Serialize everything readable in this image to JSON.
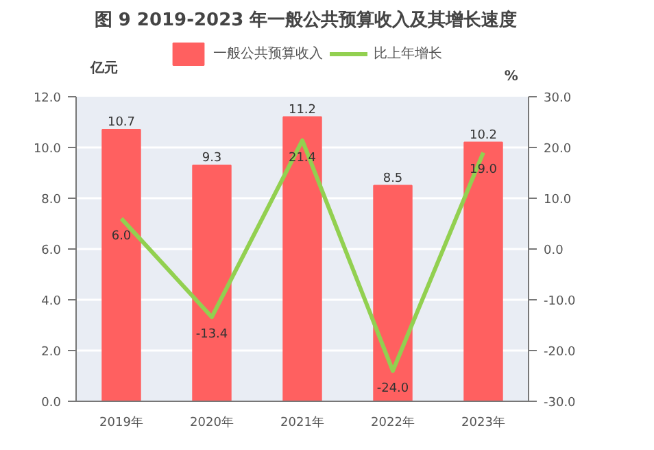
{
  "chart_data": {
    "type": "bar",
    "title": "图 9 2019-2023 年一般公共预算收入及其增长速度",
    "categories": [
      "2019年",
      "2020年",
      "2021年",
      "2022年",
      "2023年"
    ],
    "series": [
      {
        "name": "一般公共预算收入",
        "color": "#ff6060",
        "values": [
          10.7,
          9.3,
          11.2,
          8.5,
          10.2
        ],
        "value_labels": [
          "10.7",
          "9.3",
          "11.2",
          "8.5",
          "10.2"
        ]
      },
      {
        "name": "比上年增长",
        "type": "line",
        "axis": "y2",
        "color": "#92d050",
        "values": [
          6.0,
          -13.4,
          21.4,
          -24.0,
          19.0
        ],
        "value_labels": [
          "6.0",
          "-13.4",
          "21.4",
          "-24.0",
          "19.0"
        ]
      }
    ],
    "ylabel": "亿元",
    "y2label": "%",
    "ylim": [
      0,
      12
    ],
    "yticks": [
      {
        "value": 0,
        "label": "0.0"
      },
      {
        "value": 2,
        "label": "2.0"
      },
      {
        "value": 4,
        "label": "4.0"
      },
      {
        "value": 6,
        "label": "6.0"
      },
      {
        "value": 8,
        "label": "8.0"
      },
      {
        "value": 10,
        "label": "10.0"
      },
      {
        "value": 12,
        "label": "12.0"
      }
    ],
    "y2lim": [
      -30,
      30
    ],
    "y2ticks": [
      {
        "value": -30,
        "label": "-30.0"
      },
      {
        "value": -20,
        "label": "-20.0"
      },
      {
        "value": -10,
        "label": "-10.0"
      },
      {
        "value": 0,
        "label": "0.0"
      },
      {
        "value": 10,
        "label": "10.0"
      },
      {
        "value": 20,
        "label": "20.0"
      },
      {
        "value": 30,
        "label": "30.0"
      }
    ],
    "grid": "y",
    "legend": "top"
  }
}
